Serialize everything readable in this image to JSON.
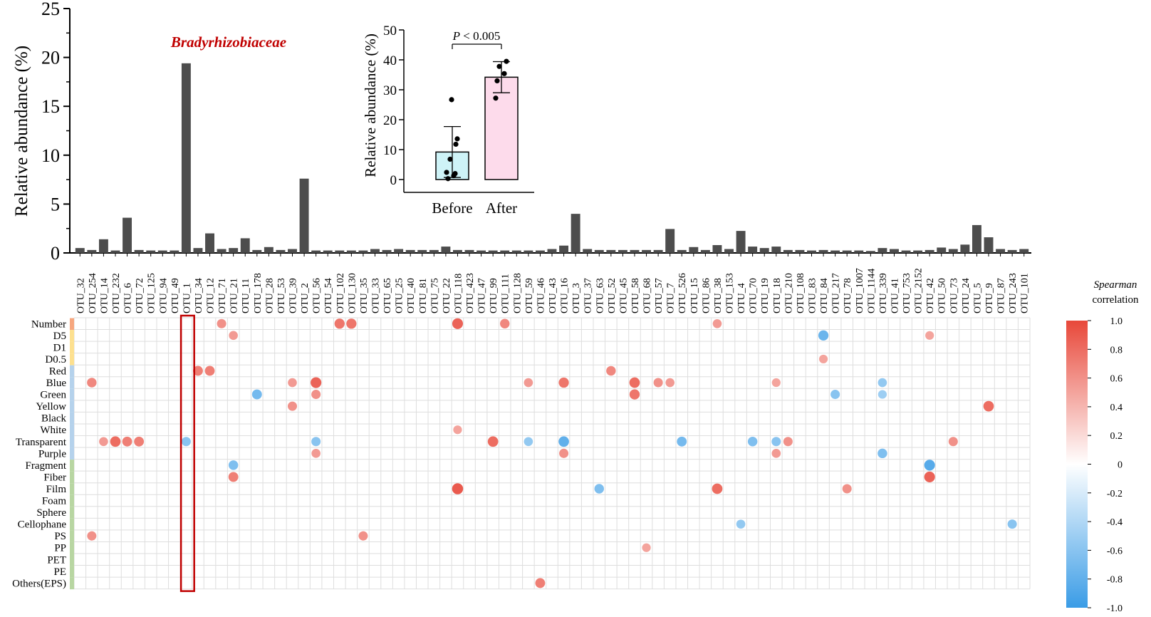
{
  "chart_data": [
    {
      "type": "bar",
      "ylabel": "Relative abundance (%)",
      "ylim": [
        0,
        25
      ],
      "yticks": [
        "0",
        "5",
        "10",
        "15",
        "20",
        "25"
      ],
      "annotation": "Bradyrhizobiaceae",
      "categories": [
        "OTU_32",
        "OTU_254",
        "OTU_14",
        "OTU_232",
        "OTU_6",
        "OTU_72",
        "OTU_125",
        "OTU_94",
        "OTU_49",
        "OTU_1",
        "OTU_34",
        "OTU_12",
        "OTU_71",
        "OTU_21",
        "OTU_11",
        "OTU_178",
        "OTU_28",
        "OTU_53",
        "OTU_39",
        "OTU_2",
        "OTU_56",
        "OTU_54",
        "OTU_102",
        "OTU_130",
        "OTU_35",
        "OTU_33",
        "OTU_65",
        "OTU_25",
        "OTU_40",
        "OTU_81",
        "OTU_75",
        "OTU_22",
        "OTU_118",
        "OTU_423",
        "OTU_47",
        "OTU_99",
        "OTU_111",
        "OTU_128",
        "OTU_59",
        "OTU_46",
        "OTU_43",
        "OTU_16",
        "OTU_3",
        "OTU_37",
        "OTU_63",
        "OTU_52",
        "OTU_45",
        "OTU_58",
        "OTU_68",
        "OTU_57",
        "OTU_7",
        "OTU_526",
        "OTU_15",
        "OTU_86",
        "OTU_38",
        "OTU_153",
        "OTU_4",
        "OTU_70",
        "OTU_19",
        "OTU_18",
        "OTU_210",
        "OTU_108",
        "OTU_83",
        "OTU_84",
        "OTU_217",
        "OTU_78",
        "OTU_1007",
        "OTU_1144",
        "OTU_339",
        "OTU_41",
        "OTU_753",
        "OTU_2152",
        "OTU_42",
        "OTU_50",
        "OTU_73",
        "OTU_24",
        "OTU_5",
        "OTU_9",
        "OTU_87",
        "OTU_243",
        "OTU_101"
      ],
      "values": [
        0.5,
        0.3,
        1.4,
        0.25,
        3.6,
        0.3,
        0.25,
        0.25,
        0.25,
        19.4,
        0.5,
        2.0,
        0.4,
        0.5,
        1.5,
        0.3,
        0.6,
        0.3,
        0.4,
        7.6,
        0.25,
        0.25,
        0.25,
        0.25,
        0.25,
        0.4,
        0.3,
        0.4,
        0.3,
        0.3,
        0.3,
        0.65,
        0.3,
        0.3,
        0.25,
        0.25,
        0.25,
        0.25,
        0.25,
        0.25,
        0.4,
        0.75,
        4.0,
        0.4,
        0.3,
        0.3,
        0.3,
        0.3,
        0.3,
        0.3,
        2.45,
        0.3,
        0.6,
        0.3,
        0.8,
        0.4,
        2.25,
        0.65,
        0.5,
        0.65,
        0.3,
        0.3,
        0.25,
        0.3,
        0.25,
        0.25,
        0.25,
        0.2,
        0.5,
        0.4,
        0.25,
        0.25,
        0.3,
        0.55,
        0.4,
        0.85,
        2.85,
        1.6,
        0.4,
        0.3,
        0.4
      ]
    },
    {
      "type": "bar",
      "ylabel": "Relative abundance (%)",
      "ylim": [
        0,
        50
      ],
      "yticks": [
        "0",
        "10",
        "20",
        "30",
        "40",
        "50"
      ],
      "categories": [
        "Before",
        "After"
      ],
      "values": [
        9.2,
        34.2
      ],
      "error": [
        8.5,
        5.2
      ],
      "points": [
        [
          0.3,
          2.0,
          6.8,
          13.6,
          2.4,
          1.3,
          11.8,
          26.7
        ],
        [
          33.0,
          35.4,
          37.8,
          39.5,
          27.2
        ]
      ],
      "colors": [
        "#cef3f7",
        "#fddbeb"
      ],
      "annotation": "P < 0.005",
      "annotation_prefix": "P",
      "annotation_rest": " < 0.005"
    },
    {
      "type": "heatmap",
      "title": "Spearman",
      "subtitle": "correlation",
      "rows": [
        "Number",
        "D5",
        "D1",
        "D0.5",
        "Red",
        "Blue",
        "Green",
        "Yellow",
        "Black",
        "White",
        "Transparent",
        "Purple",
        "Fragment",
        "Fiber",
        "Film",
        "Foam",
        "Sphere",
        "Cellophane",
        "PS",
        "PP",
        "PET",
        "PE",
        "Others(EPS)"
      ],
      "row_group_colors": [
        "#f6a77f",
        "#fde08f",
        "#fde08f",
        "#fde08f",
        "#b5d2ec",
        "#b5d2ec",
        "#b5d2ec",
        "#b5d2ec",
        "#b5d2ec",
        "#b5d2ec",
        "#b5d2ec",
        "#b5d2ec",
        "#b8d6a2",
        "#b8d6a2",
        "#b8d6a2",
        "#b8d6a2",
        "#b8d6a2",
        "#b8d6a2",
        "#b8d6a2",
        "#b8d6a2",
        "#b8d6a2",
        "#b8d6a2",
        "#b8d6a2"
      ],
      "highlight_column": "OTU_1",
      "colorbar_ticks": [
        "1.0",
        "0.8",
        "0.6",
        "0.4",
        "0.2",
        "0",
        "-0.2",
        "-0.4",
        "-0.6",
        "-0.8",
        "-1.0"
      ],
      "color_positive": "#e8483a",
      "color_negative": "#3a9ce6",
      "cells": [
        [
          "Number",
          "OTU_71",
          0.6
        ],
        [
          "Number",
          "OTU_102",
          0.75
        ],
        [
          "Number",
          "OTU_130",
          0.75
        ],
        [
          "Number",
          "OTU_118",
          0.85
        ],
        [
          "Number",
          "OTU_111",
          0.65
        ],
        [
          "Number",
          "OTU_38",
          0.55
        ],
        [
          "D5",
          "OTU_21",
          0.55
        ],
        [
          "D5",
          "OTU_84",
          -0.75
        ],
        [
          "D5",
          "OTU_42",
          0.5
        ],
        [
          "D0.5",
          "OTU_84",
          0.5
        ],
        [
          "Red",
          "OTU_34",
          0.7
        ],
        [
          "Red",
          "OTU_12",
          0.7
        ],
        [
          "Red",
          "OTU_52",
          0.65
        ],
        [
          "Blue",
          "OTU_254",
          0.65
        ],
        [
          "Blue",
          "OTU_39",
          0.55
        ],
        [
          "Blue",
          "OTU_56",
          0.85
        ],
        [
          "Blue",
          "OTU_59",
          0.55
        ],
        [
          "Blue",
          "OTU_16",
          0.75
        ],
        [
          "Blue",
          "OTU_58",
          0.8
        ],
        [
          "Blue",
          "OTU_57",
          0.6
        ],
        [
          "Blue",
          "OTU_7",
          0.55
        ],
        [
          "Blue",
          "OTU_18",
          0.5
        ],
        [
          "Blue",
          "OTU_339",
          -0.55
        ],
        [
          "Green",
          "OTU_178",
          -0.7
        ],
        [
          "Green",
          "OTU_56",
          0.6
        ],
        [
          "Green",
          "OTU_58",
          0.75
        ],
        [
          "Green",
          "OTU_217",
          -0.6
        ],
        [
          "Green",
          "OTU_339",
          -0.5
        ],
        [
          "Yellow",
          "OTU_39",
          0.6
        ],
        [
          "Yellow",
          "OTU_9",
          0.8
        ],
        [
          "White",
          "OTU_118",
          0.5
        ],
        [
          "Transparent",
          "OTU_14",
          0.55
        ],
        [
          "Transparent",
          "OTU_232",
          0.8
        ],
        [
          "Transparent",
          "OTU_6",
          0.7
        ],
        [
          "Transparent",
          "OTU_72",
          0.7
        ],
        [
          "Transparent",
          "OTU_1",
          -0.6
        ],
        [
          "Transparent",
          "OTU_56",
          -0.6
        ],
        [
          "Transparent",
          "OTU_99",
          0.8
        ],
        [
          "Transparent",
          "OTU_59",
          -0.55
        ],
        [
          "Transparent",
          "OTU_16",
          -0.8
        ],
        [
          "Transparent",
          "OTU_526",
          -0.7
        ],
        [
          "Transparent",
          "OTU_70",
          -0.65
        ],
        [
          "Transparent",
          "OTU_18",
          -0.6
        ],
        [
          "Transparent",
          "OTU_210",
          0.6
        ],
        [
          "Transparent",
          "OTU_73",
          0.6
        ],
        [
          "Purple",
          "OTU_56",
          0.55
        ],
        [
          "Purple",
          "OTU_16",
          0.6
        ],
        [
          "Purple",
          "OTU_18",
          0.55
        ],
        [
          "Purple",
          "OTU_339",
          -0.65
        ],
        [
          "Fragment",
          "OTU_21",
          -0.65
        ],
        [
          "Fragment",
          "OTU_42",
          -0.85
        ],
        [
          "Fiber",
          "OTU_21",
          0.7
        ],
        [
          "Fiber",
          "OTU_42",
          0.85
        ],
        [
          "Film",
          "OTU_118",
          0.9
        ],
        [
          "Film",
          "OTU_63",
          -0.65
        ],
        [
          "Film",
          "OTU_38",
          0.8
        ],
        [
          "Film",
          "OTU_78",
          0.6
        ],
        [
          "Cellophane",
          "OTU_4",
          -0.55
        ],
        [
          "Cellophane",
          "OTU_243",
          -0.6
        ],
        [
          "PS",
          "OTU_254",
          0.6
        ],
        [
          "PS",
          "OTU_35",
          0.6
        ],
        [
          "PP",
          "OTU_68",
          0.5
        ],
        [
          "Others(EPS)",
          "OTU_46",
          0.7
        ]
      ]
    }
  ]
}
